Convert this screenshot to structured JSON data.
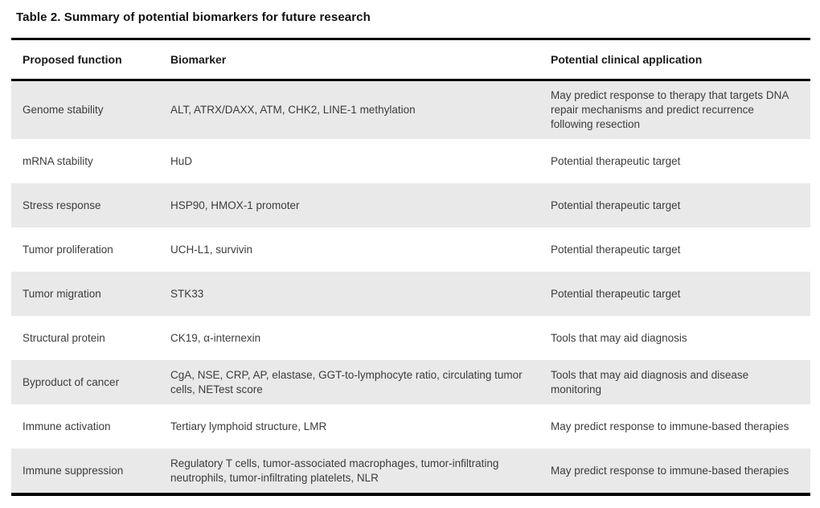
{
  "title": "Table 2. Summary of potential biomarkers for future research",
  "colors": {
    "row_shade": "#e9e9e9",
    "rule": "#000000",
    "body_text": "#3c3c3c",
    "heading_text": "#111111"
  },
  "table": {
    "headers": {
      "function": "Proposed function",
      "biomarker": "Biomarker",
      "application": "Potential clinical application"
    },
    "rows": [
      {
        "function": "Genome stability",
        "biomarker": "ALT, ATRX/DAXX, ATM, CHK2, LINE-1 methylation",
        "application": "May predict response to therapy that targets DNA repair mechanisms and predict recurrence following resection"
      },
      {
        "function": "mRNA stability",
        "biomarker": "HuD",
        "application": "Potential therapeutic target"
      },
      {
        "function": "Stress response",
        "biomarker": "HSP90, HMOX-1 promoter",
        "application": "Potential therapeutic target"
      },
      {
        "function": "Tumor proliferation",
        "biomarker": "UCH-L1, survivin",
        "application": "Potential therapeutic target"
      },
      {
        "function": "Tumor migration",
        "biomarker": "STK33",
        "application": "Potential therapeutic target"
      },
      {
        "function": "Structural protein",
        "biomarker": "CK19, α-internexin",
        "application": "Tools that may aid diagnosis"
      },
      {
        "function": "Byproduct of cancer",
        "biomarker": "CgA, NSE, CRP, AP, elastase, GGT-to-lymphocyte ratio, circulating tumor cells, NETest score",
        "application": "Tools that may aid diagnosis and disease monitoring"
      },
      {
        "function": "Immune activation",
        "biomarker": "Tertiary lymphoid structure, LMR",
        "application": "May predict response to immune-based therapies"
      },
      {
        "function": "Immune suppression",
        "biomarker": "Regulatory T cells, tumor-associated macrophages, tumor-infiltrating neutrophils, tumor-infiltrating platelets, NLR",
        "application": "May predict response to immune-based therapies"
      }
    ]
  }
}
